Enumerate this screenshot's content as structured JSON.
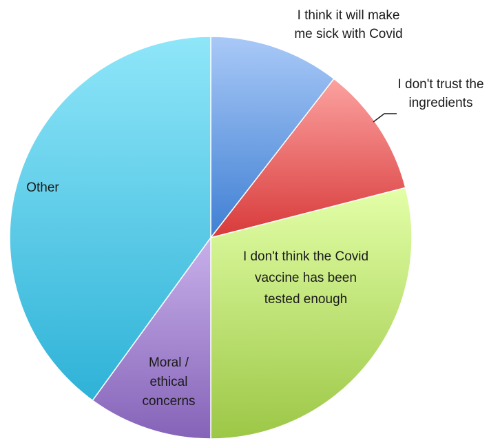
{
  "chart_data": {
    "type": "pie",
    "title": "",
    "slices": [
      {
        "label": "I think it will make me sick with Covid",
        "label_lines": [
          "I think it will make",
          "me sick with Covid"
        ],
        "value": 10.5,
        "color_top": "#a9c9f7",
        "color_bottom": "#3f7fd3"
      },
      {
        "label": "I don't trust the ingredients",
        "label_lines": [
          "I don't trust the",
          "ingredients"
        ],
        "value": 10.5,
        "color_top": "#fba2a0",
        "color_bottom": "#d83a3a"
      },
      {
        "label": "I don't think the Covid vaccine has been tested enough",
        "label_lines": [
          "I don't think the Covid",
          "vaccine has been",
          "tested enough"
        ],
        "value": 29.0,
        "color_top": "#e3ffa8",
        "color_bottom": "#9cc746"
      },
      {
        "label": "Moral / ethical concerns",
        "label_lines": [
          "Moral /",
          "ethical",
          "concerns"
        ],
        "value": 10.0,
        "color_top": "#c8b0ea",
        "color_bottom": "#8563b8"
      },
      {
        "label": "Other",
        "label_lines": [
          "Other"
        ],
        "value": 40.0,
        "color_top": "#8fe6f9",
        "color_bottom": "#2eb2d7"
      }
    ],
    "start_angle": "12 o'clock",
    "direction": "clockwise",
    "legend": "none"
  }
}
